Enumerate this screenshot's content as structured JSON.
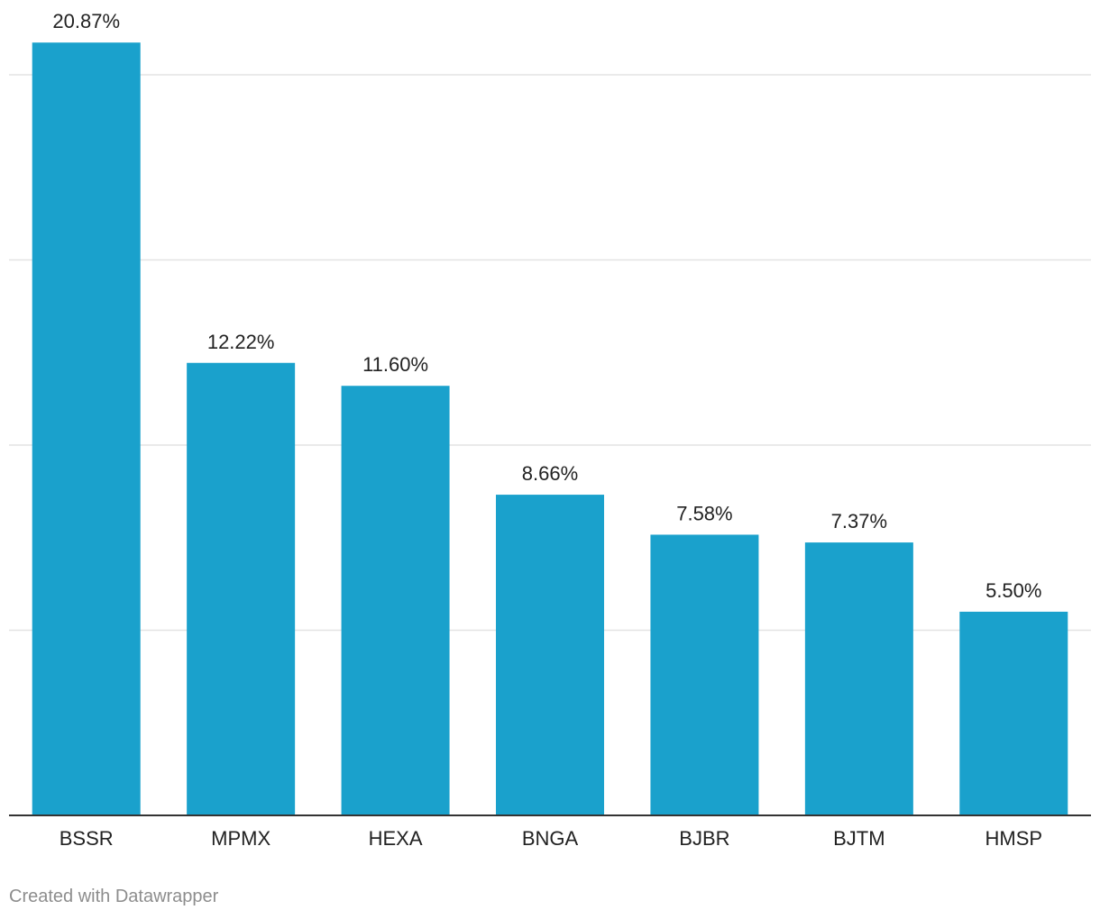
{
  "chart_data": {
    "type": "bar",
    "categories": [
      "BSSR",
      "MPMX",
      "HEXA",
      "BNGA",
      "BJBR",
      "BJTM",
      "HMSP"
    ],
    "values": [
      20.87,
      12.22,
      11.6,
      8.66,
      7.58,
      7.37,
      5.5
    ],
    "value_labels": [
      "20.87%",
      "12.22%",
      "11.60%",
      "8.66%",
      "7.58%",
      "7.37%",
      "5.50%"
    ],
    "gridlines": [
      0,
      5,
      10,
      15,
      20
    ],
    "ylim": [
      0,
      20
    ],
    "bar_color": "#1aa1cc",
    "title": "",
    "xlabel": "",
    "ylabel": ""
  },
  "footer": {
    "credit": "Created with Datawrapper"
  }
}
